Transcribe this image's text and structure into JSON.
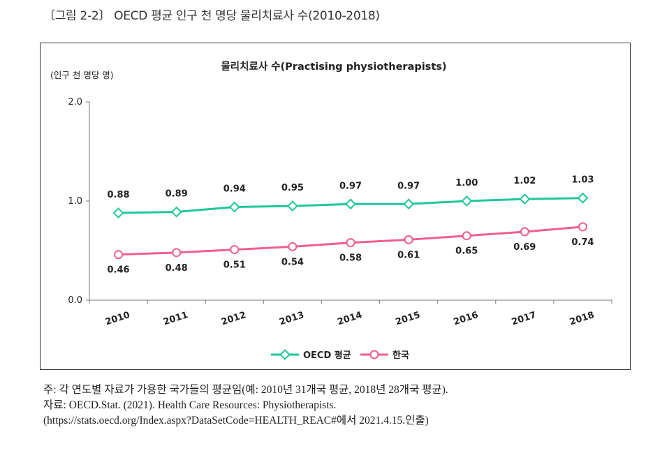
{
  "figure_caption": "〔그림 2-2〕 OECD 평균 인구 천 명당 물리치료사 수(2010-2018)",
  "notes": [
    "주: 각 연도별 자료가 가용한 국가들의 평균임(예: 2010년 31개국 평균, 2018년 28개국 평균).",
    "자료: OECD.Stat. (2021). Health Care Resources: Physiotherapists.",
    "(https://stats.oecd.org/Index.aspx?DataSetCode=HEALTH_REAC#에서 2021.4.15.인출)"
  ],
  "chart_data": {
    "type": "line",
    "title": "물리치료사 수(Practising  physiotherapists)",
    "ylabel": "(인구 천 명당 명)",
    "xlabel": "",
    "categories": [
      "2010",
      "2011",
      "2012",
      "2013",
      "2014",
      "2015",
      "2016",
      "2017",
      "2018"
    ],
    "ylim": [
      0.0,
      2.0
    ],
    "yticks": [
      "0.0",
      "1.0",
      "2.0"
    ],
    "legend_position": "bottom",
    "grid": false,
    "series": [
      {
        "name": "OECD 평균",
        "color": "#1ec79b",
        "marker": "diamond",
        "values": [
          0.88,
          0.89,
          0.94,
          0.95,
          0.97,
          0.97,
          1.0,
          1.02,
          1.03
        ],
        "labels": [
          "0.88",
          "0.89",
          "0.94",
          "0.95",
          "0.97",
          "0.97",
          "1.00",
          "1.02",
          "1.03"
        ]
      },
      {
        "name": "한국",
        "color": "#ee5f8e",
        "marker": "circle",
        "values": [
          0.46,
          0.48,
          0.51,
          0.54,
          0.58,
          0.61,
          0.65,
          0.69,
          0.74
        ],
        "labels": [
          "0.46",
          "0.48",
          "0.51",
          "0.54",
          "0.58",
          "0.61",
          "0.65",
          "0.69",
          "0.74"
        ]
      }
    ]
  }
}
